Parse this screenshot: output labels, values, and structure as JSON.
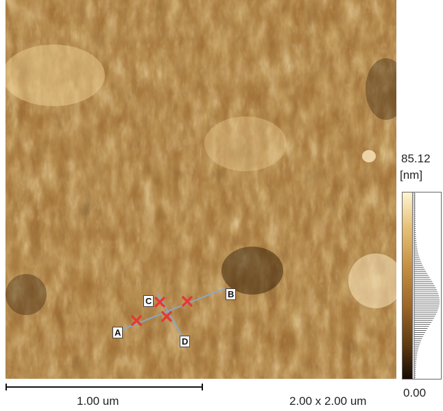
{
  "colorbar": {
    "max_value": "85.12",
    "unit": "[nm]",
    "min_value": "0.00"
  },
  "scalebar": {
    "label": "1.00 um"
  },
  "image_size": "2.00 x 2.00 um",
  "markers": [
    {
      "id": "A",
      "label": "A"
    },
    {
      "id": "B",
      "label": "B"
    },
    {
      "id": "C",
      "label": "C"
    },
    {
      "id": "D",
      "label": "D"
    }
  ],
  "colors": {
    "scan_low": "#2a1705",
    "scan_mid": "#a06a2c",
    "scan_high": "#f6dda6",
    "marker_cross": "#e53935",
    "profile_line": "#8aa8c8"
  },
  "icons": {
    "point_marker": "x-cross-marker-icon"
  }
}
